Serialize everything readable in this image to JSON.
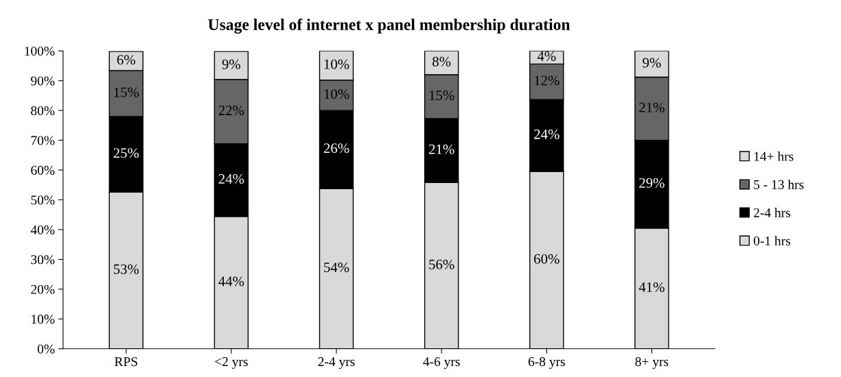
{
  "chart_data": {
    "type": "bar",
    "stacked": true,
    "title": "Usage level of internet x panel membership duration",
    "categories": [
      "RPS",
      "<2 yrs",
      "2-4 yrs",
      "4-6 yrs",
      "6-8 yrs",
      "8+ yrs"
    ],
    "series": [
      {
        "name": "0-1 hrs",
        "color": "#d9d9d9",
        "values": [
          52.6,
          44.4,
          53.8,
          55.8,
          59.5,
          40.5
        ],
        "value_labels": [
          "53%",
          "44%",
          "54%",
          "56%",
          "60%",
          "41%"
        ]
      },
      {
        "name": "2-4 hrs",
        "color": "#000000",
        "values": [
          25.4,
          24.4,
          26.2,
          21.5,
          24.2,
          29.5
        ],
        "value_labels": [
          "25%",
          "24%",
          "26%",
          "21%",
          "24%",
          "29%"
        ]
      },
      {
        "name": "5 - 13 hrs",
        "color": "#666666",
        "values": [
          15.4,
          21.6,
          10.2,
          14.7,
          11.9,
          21.2
        ],
        "value_labels": [
          "15%",
          "22%",
          "10%",
          "15%",
          "12%",
          "21%"
        ]
      },
      {
        "name": "14+ hrs",
        "color": "#d9d9d9",
        "values": [
          6.4,
          9.4,
          9.8,
          8.0,
          4.4,
          8.8
        ],
        "value_labels": [
          "6%",
          "9%",
          "10%",
          "8%",
          "4%",
          "9%"
        ]
      }
    ],
    "ylim": [
      0,
      100
    ],
    "yticks": [
      {
        "value": 0,
        "label": "0%"
      },
      {
        "value": 10,
        "label": "10%"
      },
      {
        "value": 20,
        "label": "20%"
      },
      {
        "value": 30,
        "label": "30%"
      },
      {
        "value": 40,
        "label": "40%"
      },
      {
        "value": 50,
        "label": "50%"
      },
      {
        "value": 60,
        "label": "60%"
      },
      {
        "value": 70,
        "label": "70%"
      },
      {
        "value": 80,
        "label": "80%"
      },
      {
        "value": 90,
        "label": "90%"
      },
      {
        "value": 100,
        "label": "100%"
      }
    ],
    "grid": false,
    "legend": "right"
  }
}
